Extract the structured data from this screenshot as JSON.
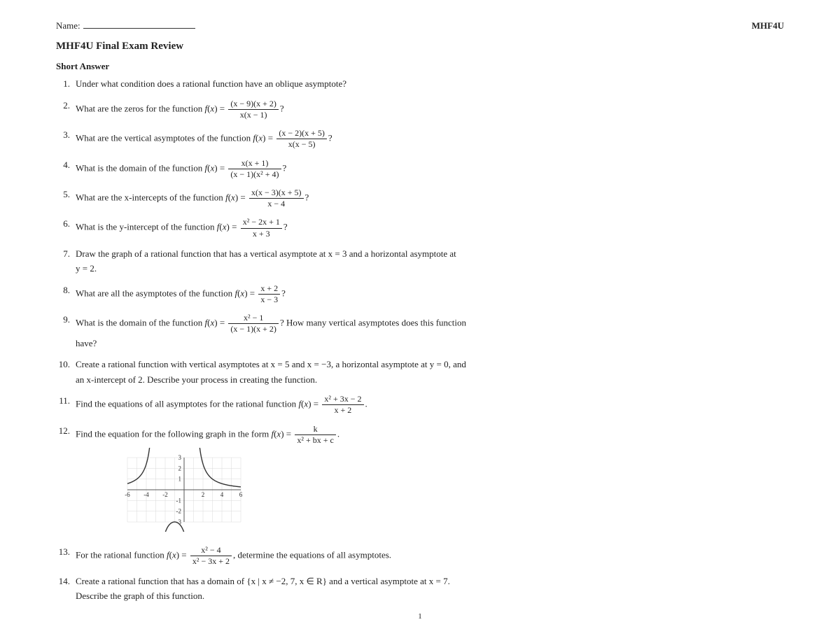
{
  "header": {
    "name_label": "Name:",
    "course": "MHF4U"
  },
  "title": "MHF4U Final Exam Review",
  "section": "Short Answer",
  "questions": {
    "q1": "Under what condition does a rational function have an oblique asymptote?",
    "q2_lead": "What are the zeros for the function ",
    "q2_num": "(x − 9)(x + 2)",
    "q2_den": "x(x − 1)",
    "q3_lead": "What are the vertical asymptotes of the function ",
    "q3_num": "(x − 2)(x + 5)",
    "q3_den": "x(x − 5)",
    "q4_lead": "What is the domain of the function ",
    "q4_num": "x(x + 1)",
    "q4_den": "(x − 1)(x² + 4)",
    "q5_lead": "What are the x-intercepts of the function ",
    "q5_num": "x(x − 3)(x + 5)",
    "q5_den": "x − 4",
    "q6_lead": "What is the y-intercept of the function ",
    "q6_num": "x² − 2x + 1",
    "q6_den": "x + 3",
    "q7a": "Draw the graph of a rational function that has a vertical asymptote at x = 3 and a horizontal asymptote at",
    "q7b": "y = 2.",
    "q8_lead": "What are all the asymptotes of the function ",
    "q8_num": "x + 2",
    "q8_den": "x − 3",
    "q9_lead": "What is the domain of the function ",
    "q9_num": "x² − 1",
    "q9_den": "(x − 1)(x + 2)",
    "q9_tail": "? How many vertical asymptotes does this function",
    "q9_b": "have?",
    "q10a": "Create a rational function with vertical asymptotes at x = 5 and x = −3, a horizontal asymptote at y = 0, and",
    "q10b": "an x-intercept of 2. Describe your process in creating the function.",
    "q11_lead": "Find the equations of all asymptotes for the rational function ",
    "q11_num": "x² + 3x − 2",
    "q11_den": "x + 2",
    "q12_lead": "Find the equation for the following graph in the form ",
    "q12_num": "k",
    "q12_den": "x² + bx + c",
    "q13_lead": "For the rational function ",
    "q13_num": "x² − 4",
    "q13_den": "x² − 3x + 2",
    "q13_tail": ", determine the equations of all asymptotes.",
    "q14a": "Create a rational function that has a domain of {x | x ≠ −2, 7, x ∈ R} and a vertical asymptote at x = 7.",
    "q14b": "Describe the graph of this function."
  },
  "graph": {
    "xmin": -6,
    "xmax": 6,
    "ymin": -3,
    "ymax": 3,
    "xticks": [
      -6,
      -4,
      -2,
      2,
      4,
      6
    ],
    "yticks": [
      -3,
      -2,
      -1,
      1,
      2,
      3
    ],
    "asymptote1_x": -3,
    "asymptote2_x": 1,
    "curve_color": "#333333",
    "grid_color": "#d8d8d8",
    "axis_color": "#555555",
    "bg": "#ffffff",
    "width": 190,
    "height": 120,
    "font_size": 9
  },
  "page_number": "1"
}
